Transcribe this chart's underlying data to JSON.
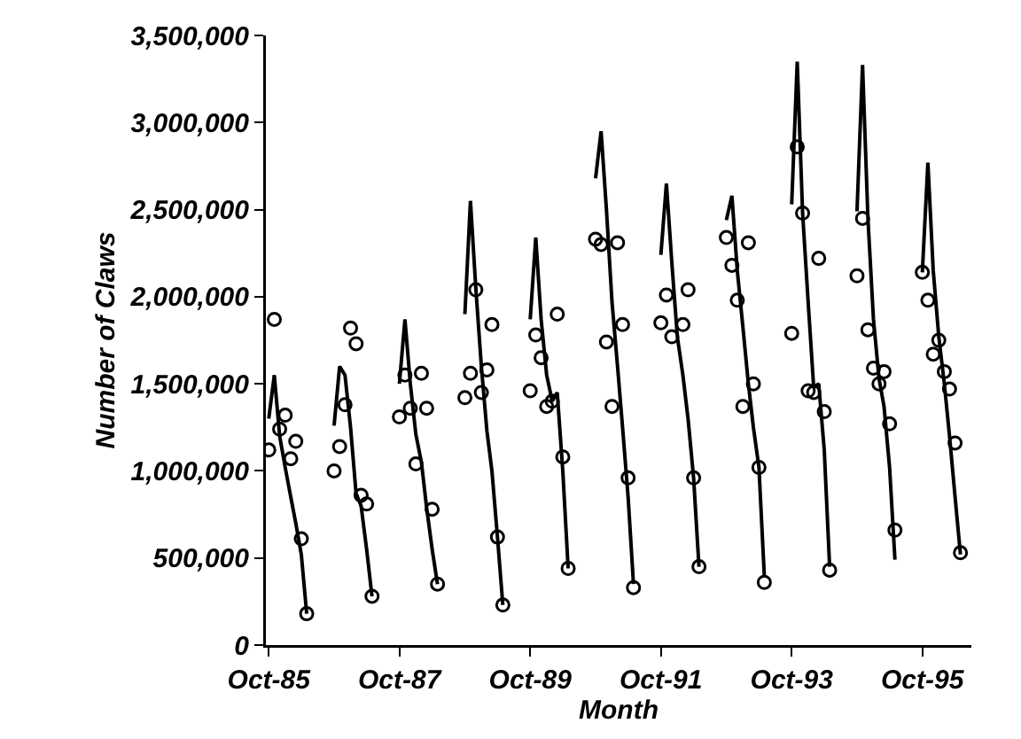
{
  "chart_data": {
    "type": "line",
    "xlabel": "Month",
    "ylabel": "Number of Claws",
    "xlim": [
      "1985-09-15",
      "1996-07"
    ],
    "ylim": [
      0,
      3500000
    ],
    "xticks": [
      {
        "value": "1985-10",
        "label": "Oct-85"
      },
      {
        "value": "1987-10",
        "label": "Oct-87"
      },
      {
        "value": "1989-10",
        "label": "Oct-89"
      },
      {
        "value": "1991-10",
        "label": "Oct-91"
      },
      {
        "value": "1993-10",
        "label": "Oct-93"
      },
      {
        "value": "1995-10",
        "label": "Oct-95"
      }
    ],
    "yticks": [
      {
        "value": 0,
        "label": "0"
      },
      {
        "value": 500000,
        "label": "500,000"
      },
      {
        "value": 1000000,
        "label": "1,000,000"
      },
      {
        "value": 1500000,
        "label": "1,500,000"
      },
      {
        "value": 2000000,
        "label": "2,000,000"
      },
      {
        "value": 2500000,
        "label": "2,500,000"
      },
      {
        "value": 3000000,
        "label": "3,000,000"
      },
      {
        "value": 3500000,
        "label": "3,500,000"
      }
    ],
    "grid": false,
    "x": [
      "1985-10",
      "1985-11",
      "1985-12",
      "1986-01",
      "1986-02",
      "1986-03",
      "1986-04",
      "1986-05",
      "1986-06",
      "1986-10",
      "1986-11",
      "1986-12",
      "1987-01",
      "1987-02",
      "1987-03",
      "1987-04",
      "1987-05",
      "1987-06",
      "1987-10",
      "1987-11",
      "1987-12",
      "1988-01",
      "1988-02",
      "1988-03",
      "1988-04",
      "1988-05",
      "1988-06",
      "1988-10",
      "1988-11",
      "1988-12",
      "1989-01",
      "1989-02",
      "1989-03",
      "1989-04",
      "1989-05",
      "1989-06",
      "1989-10",
      "1989-11",
      "1989-12",
      "1990-01",
      "1990-02",
      "1990-03",
      "1990-04",
      "1990-05",
      "1990-06",
      "1990-10",
      "1990-11",
      "1990-12",
      "1991-01",
      "1991-02",
      "1991-03",
      "1991-04",
      "1991-05",
      "1991-06",
      "1991-10",
      "1991-11",
      "1991-12",
      "1992-01",
      "1992-02",
      "1992-03",
      "1992-04",
      "1992-05",
      "1992-06",
      "1992-10",
      "1992-11",
      "1992-12",
      "1993-01",
      "1993-02",
      "1993-03",
      "1993-04",
      "1993-05",
      "1993-06",
      "1993-10",
      "1993-11",
      "1993-12",
      "1994-01",
      "1994-02",
      "1994-03",
      "1994-04",
      "1994-05",
      "1994-06",
      "1994-10",
      "1994-11",
      "1994-12",
      "1995-01",
      "1995-02",
      "1995-03",
      "1995-04",
      "1995-05",
      "1995-06",
      "1995-10",
      "1995-11",
      "1995-12",
      "1996-01",
      "1996-02",
      "1996-03",
      "1996-04",
      "1996-05"
    ],
    "series": [
      {
        "color": "#000000",
        "marker": "none",
        "line_style": "solid",
        "values": [
          1300000,
          1550000,
          1200000,
          1020000,
          850000,
          700000,
          520000,
          180000,
          null,
          1260000,
          1600000,
          1550000,
          1250000,
          870000,
          800000,
          550000,
          280000,
          null,
          1500000,
          1870000,
          1500000,
          1210000,
          1050000,
          790000,
          550000,
          350000,
          null,
          1900000,
          2550000,
          2050000,
          1600000,
          1230000,
          1000000,
          620000,
          230000,
          null,
          1870000,
          2340000,
          1870000,
          1550000,
          1400000,
          1450000,
          1000000,
          440000,
          null,
          2680000,
          2950000,
          2500000,
          1970000,
          1600000,
          1250000,
          850000,
          350000,
          null,
          2240000,
          2650000,
          2200000,
          1770000,
          1550000,
          1300000,
          960000,
          450000,
          null,
          2440000,
          2580000,
          2150000,
          1830000,
          1500000,
          1250000,
          1020000,
          400000,
          null,
          2530000,
          3350000,
          2480000,
          1970000,
          1480000,
          1500000,
          1120000,
          450000,
          null,
          2490000,
          3330000,
          2450000,
          1870000,
          1530000,
          1370000,
          1020000,
          490000,
          null,
          2140000,
          2770000,
          2150000,
          1770000,
          1500000,
          1200000,
          850000,
          520000
        ]
      },
      {
        "type": "scatter",
        "color": "#000000",
        "marker": "circle",
        "values": [
          1120000,
          1870000,
          1240000,
          1320000,
          1070000,
          1170000,
          610000,
          180000,
          null,
          1000000,
          1140000,
          1380000,
          1820000,
          1730000,
          860000,
          810000,
          280000,
          null,
          1310000,
          1550000,
          1360000,
          1040000,
          1560000,
          1360000,
          780000,
          350000,
          null,
          1420000,
          1560000,
          2040000,
          1450000,
          1580000,
          1840000,
          620000,
          230000,
          null,
          1460000,
          1780000,
          1650000,
          1370000,
          1400000,
          1900000,
          1080000,
          440000,
          null,
          2330000,
          2300000,
          1740000,
          1370000,
          2310000,
          1840000,
          960000,
          330000,
          null,
          1850000,
          2010000,
          1770000,
          null,
          1840000,
          2040000,
          960000,
          450000,
          null,
          2340000,
          2180000,
          1980000,
          1370000,
          2310000,
          1500000,
          1020000,
          360000,
          null,
          1790000,
          2860000,
          2480000,
          1460000,
          1450000,
          2220000,
          1340000,
          430000,
          null,
          2120000,
          2450000,
          1810000,
          1590000,
          1500000,
          1570000,
          1270000,
          660000,
          null,
          2140000,
          1980000,
          1670000,
          1750000,
          1570000,
          1470000,
          1160000,
          530000
        ]
      }
    ]
  }
}
